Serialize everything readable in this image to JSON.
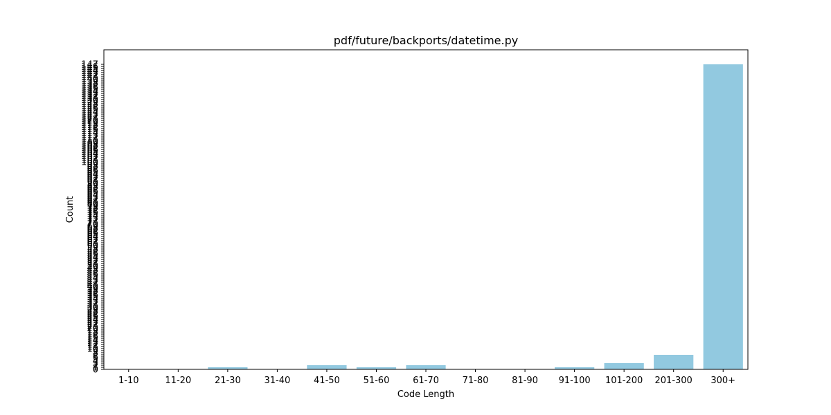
{
  "chart_data": {
    "type": "bar",
    "title": "pdf/future/backports/datetime.py",
    "xlabel": "Code Length",
    "ylabel": "Count",
    "categories": [
      "1-10",
      "11-20",
      "21-30",
      "31-40",
      "41-50",
      "51-60",
      "61-70",
      "71-80",
      "81-90",
      "91-100",
      "101-200",
      "201-300",
      "300+"
    ],
    "values": [
      0,
      0,
      1,
      0,
      2,
      1,
      2,
      0,
      0,
      1,
      3,
      7,
      147
    ],
    "ylim": [
      0,
      154
    ],
    "yticks": [
      0,
      1,
      2,
      3,
      4,
      5,
      6,
      7,
      8,
      9,
      10,
      11,
      12,
      13,
      14,
      15,
      16,
      17,
      18,
      19,
      20,
      21,
      22,
      23,
      24,
      25,
      26,
      27,
      28,
      29,
      30,
      31,
      32,
      33,
      34,
      35,
      36,
      37,
      38,
      39,
      40,
      41,
      42,
      43,
      44,
      45,
      46,
      47,
      48,
      49,
      50,
      51,
      52,
      53,
      54,
      55,
      56,
      57,
      58,
      59,
      60,
      61,
      62,
      63,
      64,
      65,
      66,
      67,
      68,
      69,
      70,
      71,
      72,
      73,
      74,
      75,
      76,
      77,
      78,
      79,
      80,
      81,
      82,
      83,
      84,
      85,
      86,
      87,
      88,
      89,
      90,
      91,
      92,
      93,
      94,
      95,
      96,
      97,
      98,
      99,
      100,
      101,
      102,
      103,
      104,
      105,
      106,
      107,
      108,
      109,
      110,
      111,
      112,
      113,
      114,
      115,
      116,
      117,
      118,
      119,
      120,
      121,
      122,
      123,
      124,
      125,
      126,
      127,
      128,
      129,
      130,
      131,
      132,
      133,
      134,
      135,
      136,
      137,
      138,
      139,
      140,
      141,
      142,
      143,
      144,
      145,
      146,
      147
    ],
    "bar_color": "#92c9e0",
    "grid": false
  }
}
